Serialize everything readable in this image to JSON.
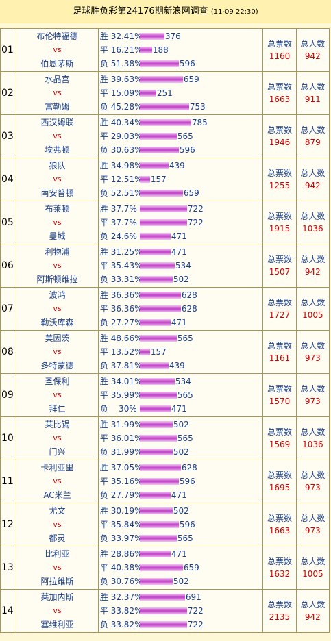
{
  "header": {
    "title": "足球胜负彩第24176期新浪网调查",
    "timestamp": "(11-09 22:30)"
  },
  "labels": {
    "vs": "vs",
    "win": "胜",
    "draw": "平",
    "loss": "负",
    "total_votes": "总票数",
    "total_people": "总人数"
  },
  "matches": [
    {
      "no": "01",
      "home": "布伦特福德",
      "away": "伯恩茅斯",
      "win_pct": "32.41%",
      "win": 376,
      "draw_pct": "16.21%",
      "draw": 188,
      "loss_pct": "51.38%",
      "loss": 596,
      "votes": 1160,
      "people": 942
    },
    {
      "no": "02",
      "home": "水晶宫",
      "away": "富勒姆",
      "win_pct": "39.63%",
      "win": 659,
      "draw_pct": "15.09%",
      "draw": 251,
      "loss_pct": "45.28%",
      "loss": 753,
      "votes": 1663,
      "people": 911
    },
    {
      "no": "03",
      "home": "西汉姆联",
      "away": "埃弗顿",
      "win_pct": "40.34%",
      "win": 785,
      "draw_pct": "29.03%",
      "draw": 565,
      "loss_pct": "30.63%",
      "loss": 596,
      "votes": 1946,
      "people": 879
    },
    {
      "no": "04",
      "home": "狼队",
      "away": "南安普顿",
      "win_pct": "34.98%",
      "win": 439,
      "draw_pct": "12.51%",
      "draw": 157,
      "loss_pct": "52.51%",
      "loss": 659,
      "votes": 1255,
      "people": 942
    },
    {
      "no": "05",
      "home": "布莱顿",
      "away": "曼城",
      "win_pct": "37.7%",
      "win": 722,
      "draw_pct": "37.7%",
      "draw": 722,
      "loss_pct": "24.6%",
      "loss": 471,
      "votes": 1915,
      "people": 1036
    },
    {
      "no": "06",
      "home": "利物浦",
      "away": "阿斯顿维拉",
      "win_pct": "31.25%",
      "win": 471,
      "draw_pct": "35.43%",
      "draw": 534,
      "loss_pct": "33.31%",
      "loss": 502,
      "votes": 1507,
      "people": 942
    },
    {
      "no": "07",
      "home": "波鸿",
      "away": "勒沃库森",
      "win_pct": "36.36%",
      "win": 628,
      "draw_pct": "36.36%",
      "draw": 628,
      "loss_pct": "27.27%",
      "loss": 471,
      "votes": 1727,
      "people": 1005
    },
    {
      "no": "08",
      "home": "美因茨",
      "away": "多特蒙德",
      "win_pct": "48.66%",
      "win": 565,
      "draw_pct": "13.52%",
      "draw": 157,
      "loss_pct": "37.81%",
      "loss": 439,
      "votes": 1161,
      "people": 973
    },
    {
      "no": "09",
      "home": "圣保利",
      "away": "拜仁",
      "win_pct": "34.01%",
      "win": 534,
      "draw_pct": "35.99%",
      "draw": 565,
      "loss_pct": "   30%",
      "loss": 471,
      "votes": 1570,
      "people": 973
    },
    {
      "no": "10",
      "home": "莱比锡",
      "away": "门兴",
      "win_pct": "31.99%",
      "win": 502,
      "draw_pct": "36.01%",
      "draw": 565,
      "loss_pct": "31.99%",
      "loss": 502,
      "votes": 1569,
      "people": 1036
    },
    {
      "no": "11",
      "home": "卡利亚里",
      "away": "AC米兰",
      "win_pct": "37.05%",
      "win": 628,
      "draw_pct": "35.16%",
      "draw": 596,
      "loss_pct": "27.79%",
      "loss": 471,
      "votes": 1695,
      "people": 973
    },
    {
      "no": "12",
      "home": "尤文",
      "away": "都灵",
      "win_pct": "30.19%",
      "win": 502,
      "draw_pct": "35.84%",
      "draw": 596,
      "loss_pct": "33.97%",
      "loss": 565,
      "votes": 1663,
      "people": 973
    },
    {
      "no": "13",
      "home": "比利亚",
      "away": "阿拉维斯",
      "win_pct": "28.86%",
      "win": 471,
      "draw_pct": "40.38%",
      "draw": 659,
      "loss_pct": "30.76%",
      "loss": 502,
      "votes": 1632,
      "people": 1005
    },
    {
      "no": "14",
      "home": "莱加内斯",
      "away": "塞维利亚",
      "win_pct": "32.37%",
      "win": 691,
      "draw_pct": "33.82%",
      "draw": 722,
      "loss_pct": "33.82%",
      "loss": 722,
      "votes": 2135,
      "people": 942
    }
  ],
  "colors": {
    "team_text": "#1a3f8f",
    "vs_text": "#d40000",
    "bar": "#c040c8"
  }
}
